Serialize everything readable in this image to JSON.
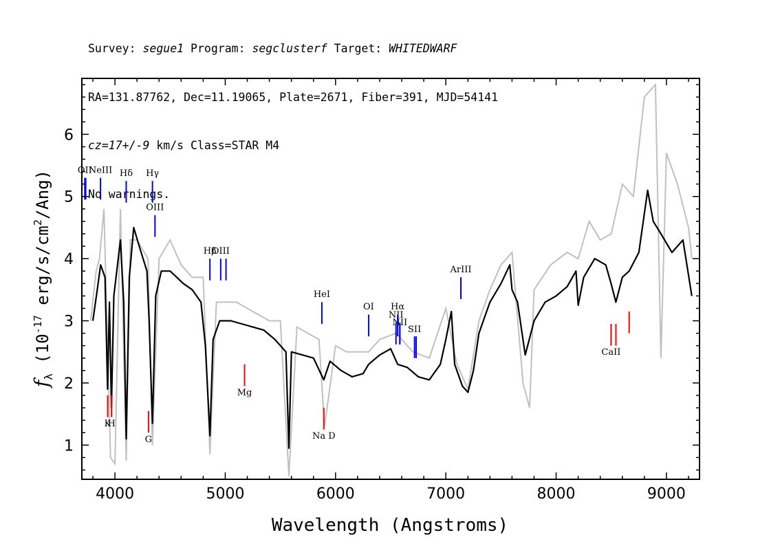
{
  "header": {
    "line1": {
      "survey_label": "Survey: ",
      "survey": "segue1",
      "program_label": " Program: ",
      "program": "segclusterf",
      "target_label": " Target: ",
      "target": "WHITEDWARF"
    },
    "line2": "RA=131.87762, Dec=11.19065, Plate=2671, Fiber=391, MJD=54141",
    "line3": {
      "cz": "cz=17+/-9",
      "rest": " km/s Class=STAR M4"
    },
    "line4": "No warnings."
  },
  "chart_data": {
    "type": "line",
    "xlabel": "Wavelength (Angstroms)",
    "ylabel_parts": {
      "f": "f",
      "lambda": "λ",
      "open": " (10",
      "exp": "-17",
      "mid": " erg/s/cm",
      "exp2": "2",
      "close": "/Ang)"
    },
    "xlim": [
      3700,
      9300
    ],
    "ylim": [
      0.45,
      6.9
    ],
    "x_ticks": [
      4000,
      5000,
      6000,
      7000,
      8000,
      9000
    ],
    "y_ticks": [
      1,
      2,
      3,
      4,
      5,
      6
    ],
    "colors": {
      "flux": "#000000",
      "error_band": "#c0c0c0",
      "emission": "#0000ff",
      "absorption": "#ff0000"
    },
    "flux_points": [
      [
        3800,
        3.0
      ],
      [
        3840,
        3.5
      ],
      [
        3870,
        3.9
      ],
      [
        3910,
        3.7
      ],
      [
        3933,
        1.9
      ],
      [
        3950,
        3.3
      ],
      [
        3968,
        1.6
      ],
      [
        3990,
        3.4
      ],
      [
        4050,
        4.3
      ],
      [
        4080,
        3.3
      ],
      [
        4102,
        1.1
      ],
      [
        4130,
        3.7
      ],
      [
        4170,
        4.5
      ],
      [
        4220,
        4.2
      ],
      [
        4290,
        3.8
      ],
      [
        4310,
        3.0
      ],
      [
        4340,
        1.35
      ],
      [
        4370,
        3.4
      ],
      [
        4420,
        3.8
      ],
      [
        4500,
        3.8
      ],
      [
        4560,
        3.7
      ],
      [
        4620,
        3.6
      ],
      [
        4700,
        3.5
      ],
      [
        4780,
        3.3
      ],
      [
        4820,
        2.6
      ],
      [
        4861,
        1.15
      ],
      [
        4890,
        2.7
      ],
      [
        4950,
        3.0
      ],
      [
        5050,
        3.0
      ],
      [
        5150,
        2.95
      ],
      [
        5250,
        2.9
      ],
      [
        5350,
        2.85
      ],
      [
        5450,
        2.7
      ],
      [
        5550,
        2.5
      ],
      [
        5577,
        0.95
      ],
      [
        5600,
        2.5
      ],
      [
        5700,
        2.45
      ],
      [
        5800,
        2.4
      ],
      [
        5893,
        2.05
      ],
      [
        5950,
        2.35
      ],
      [
        6050,
        2.2
      ],
      [
        6150,
        2.1
      ],
      [
        6250,
        2.15
      ],
      [
        6300,
        2.3
      ],
      [
        6400,
        2.45
      ],
      [
        6500,
        2.55
      ],
      [
        6563,
        2.3
      ],
      [
        6650,
        2.25
      ],
      [
        6750,
        2.1
      ],
      [
        6850,
        2.05
      ],
      [
        6950,
        2.3
      ],
      [
        7000,
        2.7
      ],
      [
        7050,
        3.15
      ],
      [
        7080,
        2.3
      ],
      [
        7150,
        1.95
      ],
      [
        7200,
        1.85
      ],
      [
        7250,
        2.2
      ],
      [
        7300,
        2.8
      ],
      [
        7400,
        3.3
      ],
      [
        7500,
        3.6
      ],
      [
        7580,
        3.9
      ],
      [
        7600,
        3.5
      ],
      [
        7650,
        3.3
      ],
      [
        7720,
        2.45
      ],
      [
        7800,
        3.0
      ],
      [
        7900,
        3.3
      ],
      [
        8000,
        3.4
      ],
      [
        8100,
        3.55
      ],
      [
        8180,
        3.8
      ],
      [
        8200,
        3.25
      ],
      [
        8250,
        3.7
      ],
      [
        8350,
        4.0
      ],
      [
        8450,
        3.9
      ],
      [
        8498,
        3.6
      ],
      [
        8542,
        3.3
      ],
      [
        8600,
        3.7
      ],
      [
        8662,
        3.8
      ],
      [
        8750,
        4.1
      ],
      [
        8830,
        5.1
      ],
      [
        8880,
        4.6
      ],
      [
        8950,
        4.4
      ],
      [
        9050,
        4.1
      ],
      [
        9150,
        4.3
      ],
      [
        9230,
        3.4
      ]
    ],
    "error_points": [
      [
        3780,
        3.0
      ],
      [
        3830,
        3.8
      ],
      [
        3860,
        4.0
      ],
      [
        3900,
        4.8
      ],
      [
        3960,
        0.8
      ],
      [
        4000,
        0.7
      ],
      [
        4050,
        4.8
      ],
      [
        4102,
        0.75
      ],
      [
        4140,
        4.3
      ],
      [
        4200,
        4.3
      ],
      [
        4300,
        4.0
      ],
      [
        4340,
        1.0
      ],
      [
        4400,
        4.0
      ],
      [
        4500,
        4.3
      ],
      [
        4600,
        3.9
      ],
      [
        4700,
        3.7
      ],
      [
        4800,
        3.7
      ],
      [
        4861,
        0.85
      ],
      [
        4920,
        3.3
      ],
      [
        5000,
        3.3
      ],
      [
        5100,
        3.3
      ],
      [
        5200,
        3.2
      ],
      [
        5300,
        3.1
      ],
      [
        5400,
        3.0
      ],
      [
        5500,
        3.0
      ],
      [
        5577,
        0.5
      ],
      [
        5650,
        2.9
      ],
      [
        5750,
        2.8
      ],
      [
        5850,
        2.7
      ],
      [
        5900,
        1.3
      ],
      [
        6000,
        2.6
      ],
      [
        6100,
        2.5
      ],
      [
        6200,
        2.5
      ],
      [
        6300,
        2.5
      ],
      [
        6400,
        2.7
      ],
      [
        6550,
        2.8
      ],
      [
        6700,
        2.5
      ],
      [
        6850,
        2.4
      ],
      [
        7000,
        3.2
      ],
      [
        7100,
        2.3
      ],
      [
        7200,
        1.9
      ],
      [
        7300,
        3.0
      ],
      [
        7400,
        3.5
      ],
      [
        7500,
        3.9
      ],
      [
        7600,
        4.1
      ],
      [
        7700,
        2.0
      ],
      [
        7760,
        1.6
      ],
      [
        7800,
        3.5
      ],
      [
        7950,
        3.9
      ],
      [
        8100,
        4.1
      ],
      [
        8200,
        4.0
      ],
      [
        8300,
        4.6
      ],
      [
        8400,
        4.3
      ],
      [
        8500,
        4.4
      ],
      [
        8600,
        5.2
      ],
      [
        8700,
        5.0
      ],
      [
        8800,
        6.6
      ],
      [
        8900,
        6.8
      ],
      [
        8950,
        2.4
      ],
      [
        9000,
        5.7
      ],
      [
        9100,
        5.2
      ],
      [
        9200,
        4.5
      ],
      [
        9230,
        4.0
      ]
    ],
    "emission_lines": [
      {
        "label": "OII",
        "wave": 3727,
        "y0": 4.95,
        "y1": 5.3,
        "ly": 5.38
      },
      {
        "label": "",
        "wave": 3735,
        "y0": 4.95,
        "y1": 5.3,
        "ly": 5.38
      },
      {
        "label": "NeIII",
        "wave": 3869,
        "y0": 4.95,
        "y1": 5.3,
        "ly": 5.38
      },
      {
        "label": "Hδ",
        "wave": 4102,
        "y0": 4.9,
        "y1": 5.25,
        "ly": 5.33
      },
      {
        "label": "Hγ",
        "wave": 4340,
        "y0": 4.9,
        "y1": 5.25,
        "ly": 5.33
      },
      {
        "label": "OIII",
        "wave": 4363,
        "y0": 4.35,
        "y1": 4.7,
        "ly": 4.78
      },
      {
        "label": "Hβ",
        "wave": 4861,
        "y0": 3.65,
        "y1": 4.0,
        "ly": 4.08
      },
      {
        "label": "OIII",
        "wave": 4959,
        "y0": 3.65,
        "y1": 4.0,
        "ly": 4.08
      },
      {
        "label": "",
        "wave": 5007,
        "y0": 3.65,
        "y1": 4.0,
        "ly": 4.08
      },
      {
        "label": "HeI",
        "wave": 5876,
        "y0": 2.95,
        "y1": 3.3,
        "ly": 3.38
      },
      {
        "label": "OI",
        "wave": 6300,
        "y0": 2.75,
        "y1": 3.1,
        "ly": 3.18
      },
      {
        "label": "NII",
        "wave": 6548,
        "y0": 2.62,
        "y1": 2.97,
        "ly": 3.05
      },
      {
        "label": "Hα",
        "wave": 6563,
        "y0": 2.75,
        "y1": 3.1,
        "ly": 3.18
      },
      {
        "label": "",
        "wave": 6583,
        "y0": 2.62,
        "y1": 2.97,
        "ly": 3.05
      },
      {
        "label": "NII",
        "wave": 6583,
        "y0": 2.62,
        "y1": 2.97,
        "ly": 2.93
      },
      {
        "label": "SII",
        "wave": 6716,
        "y0": 2.4,
        "y1": 2.75,
        "ly": 2.82
      },
      {
        "label": "",
        "wave": 6731,
        "y0": 2.4,
        "y1": 2.75,
        "ly": 2.82
      },
      {
        "label": "ArIII",
        "wave": 7136,
        "y0": 3.35,
        "y1": 3.7,
        "ly": 3.78
      }
    ],
    "absorption_lines": [
      {
        "label": "K",
        "wave": 3934,
        "y0": 1.45,
        "y1": 1.8,
        "ly": 1.3
      },
      {
        "label": "H",
        "wave": 3969,
        "y0": 1.45,
        "y1": 1.8,
        "ly": 1.3
      },
      {
        "label": "G",
        "wave": 4304,
        "y0": 1.2,
        "y1": 1.55,
        "ly": 1.05
      },
      {
        "label": "Mg",
        "wave": 5175,
        "y0": 1.95,
        "y1": 2.3,
        "ly": 1.8
      },
      {
        "label": "Na D",
        "wave": 5894,
        "y0": 1.25,
        "y1": 1.6,
        "ly": 1.1
      },
      {
        "label": "CaII",
        "wave": 8498,
        "y0": 2.6,
        "y1": 2.95,
        "ly": 2.45
      },
      {
        "label": "",
        "wave": 8542,
        "y0": 2.6,
        "y1": 2.95,
        "ly": 2.45
      },
      {
        "label": "",
        "wave": 8662,
        "y0": 2.8,
        "y1": 3.15,
        "ly": 2.95
      }
    ]
  }
}
